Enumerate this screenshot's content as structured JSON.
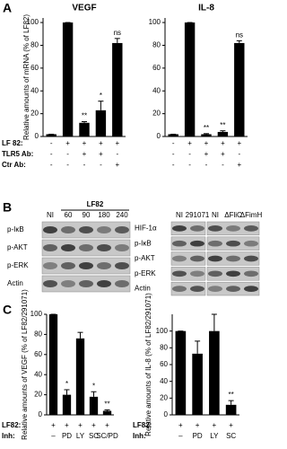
{
  "panel_letters": [
    "A",
    "B",
    "C"
  ],
  "chart_data": [
    {
      "type": "bar",
      "title": "VEGF",
      "ylabel": "Relative amounts of mRNA (% of LF82)",
      "categories": [
        null,
        null,
        null,
        null,
        null
      ],
      "values": [
        2,
        100,
        12,
        23,
        82
      ],
      "errors": [
        0,
        0,
        1,
        8,
        4
      ],
      "annotations": [
        null,
        null,
        "**",
        "*",
        "ns"
      ],
      "color": "#000000",
      "ylim": [
        0,
        104
      ],
      "yticks": [
        0,
        20,
        40,
        60,
        80,
        100
      ],
      "condition_labels": [
        "LF 82:",
        "TLR5 Ab:",
        "Ctr Ab:"
      ],
      "conditions": [
        [
          "-",
          "+",
          "+",
          "+",
          "+"
        ],
        [
          "-",
          "-",
          "+",
          "+",
          "-"
        ],
        [
          "-",
          "-",
          "-",
          "-",
          "+"
        ]
      ]
    },
    {
      "type": "bar",
      "title": "IL-8",
      "categories": [
        null,
        null,
        null,
        null,
        null
      ],
      "values": [
        2,
        100,
        2,
        4,
        82
      ],
      "errors": [
        0,
        0,
        0.5,
        1,
        2
      ],
      "annotations": [
        null,
        null,
        "**",
        "**",
        "ns"
      ],
      "color": "#000000",
      "ylim": [
        0,
        104
      ],
      "yticks": [
        0,
        20,
        40,
        60,
        80,
        100
      ],
      "conditions": [
        [
          "-",
          "+",
          "+",
          "+",
          "+"
        ],
        [
          "-",
          "-",
          "+",
          "+",
          "-"
        ],
        [
          "-",
          "-",
          "-",
          "-",
          "+"
        ]
      ]
    },
    {
      "type": "bar",
      "ylabel": "Relative amounts of VEGF (% of LF82/291071)",
      "categories": [
        null,
        null,
        null,
        null,
        null
      ],
      "values": [
        100,
        20,
        76,
        18,
        4
      ],
      "errors": [
        0,
        5,
        6,
        5,
        1
      ],
      "annotations": [
        null,
        "*",
        null,
        "*",
        "**"
      ],
      "color": "#000000",
      "ylim": [
        0,
        100
      ],
      "yticks": [
        0,
        20,
        40,
        60,
        80,
        100
      ],
      "condition_labels": [
        "LF82:",
        "Inh:"
      ],
      "conditions": [
        [
          "+",
          "+",
          "+",
          "+",
          "+"
        ],
        [
          "–",
          "PD",
          "LY",
          "SC",
          "SC/PD"
        ]
      ]
    },
    {
      "type": "bar",
      "ylabel": "Relative amounts of IL-8 (% of LF82/291071)",
      "categories": [
        null,
        null,
        null,
        null
      ],
      "values": [
        100,
        73,
        100,
        12
      ],
      "errors": [
        0,
        15,
        20,
        5
      ],
      "annotations": [
        null,
        null,
        null,
        "**"
      ],
      "color": "#000000",
      "ylim": [
        0,
        120
      ],
      "yticks": [
        0,
        20,
        40,
        60,
        80,
        100
      ],
      "condition_labels": [
        "LF82:",
        "Inh:"
      ],
      "conditions": [
        [
          "+",
          "+",
          "+",
          "+"
        ],
        [
          "–",
          "PD",
          "LY",
          "SC"
        ]
      ]
    }
  ],
  "blots": {
    "left": {
      "header": "LF82",
      "columns": [
        "NI",
        "60",
        "90",
        "180",
        "240"
      ],
      "rows": [
        "p-IκB",
        "p-AKT",
        "p-ERK",
        "Actin"
      ]
    },
    "right": {
      "columns": [
        "NI",
        "291071",
        "NI",
        "ΔFliC",
        "ΔFimH"
      ],
      "rows": [
        "HIF-1α",
        "p-IκB",
        "p-AKT",
        "p-ERK",
        "Actin"
      ]
    }
  }
}
